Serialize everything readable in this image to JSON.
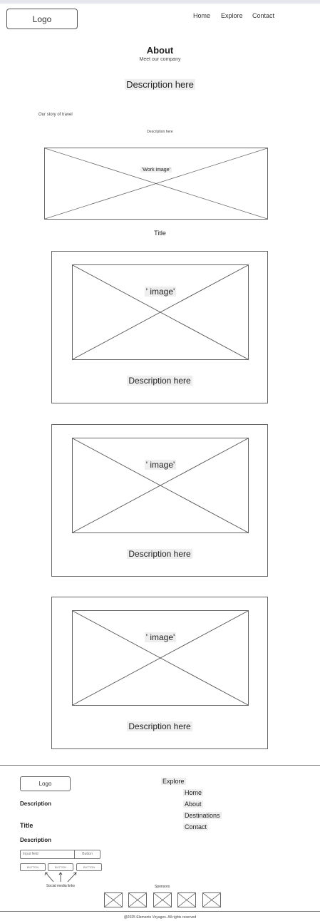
{
  "header": {
    "logo": "Logo",
    "nav": [
      "Home",
      "Explore",
      "Contact"
    ]
  },
  "about": {
    "title": "About",
    "subtitle": "Meet our company",
    "description": "Description here",
    "story": "Our story of travel",
    "story_description": "Description here",
    "work_image": "'Work image'",
    "section_title": "Title"
  },
  "cards": [
    {
      "image_label": "' image'",
      "description": "Description here"
    },
    {
      "image_label": "' image'",
      "description": "Description here"
    },
    {
      "image_label": "' image'",
      "description": "Description here"
    }
  ],
  "footer": {
    "logo": "Logo",
    "description_1": "Description",
    "title": "Title",
    "description_2": "Description",
    "input_placeholder": "Input field",
    "submit_button": "Button",
    "buttons": [
      "BUTTON",
      "BUTTON",
      "BUTTON"
    ],
    "social_label": "Social media links",
    "explore_title": "Explore",
    "explore_links": [
      "Home",
      "About",
      "Destinations",
      "Contact"
    ],
    "sponsors_label": "Sponsors",
    "copyright": "@2025 Elements Voyages. All rights reserved"
  }
}
